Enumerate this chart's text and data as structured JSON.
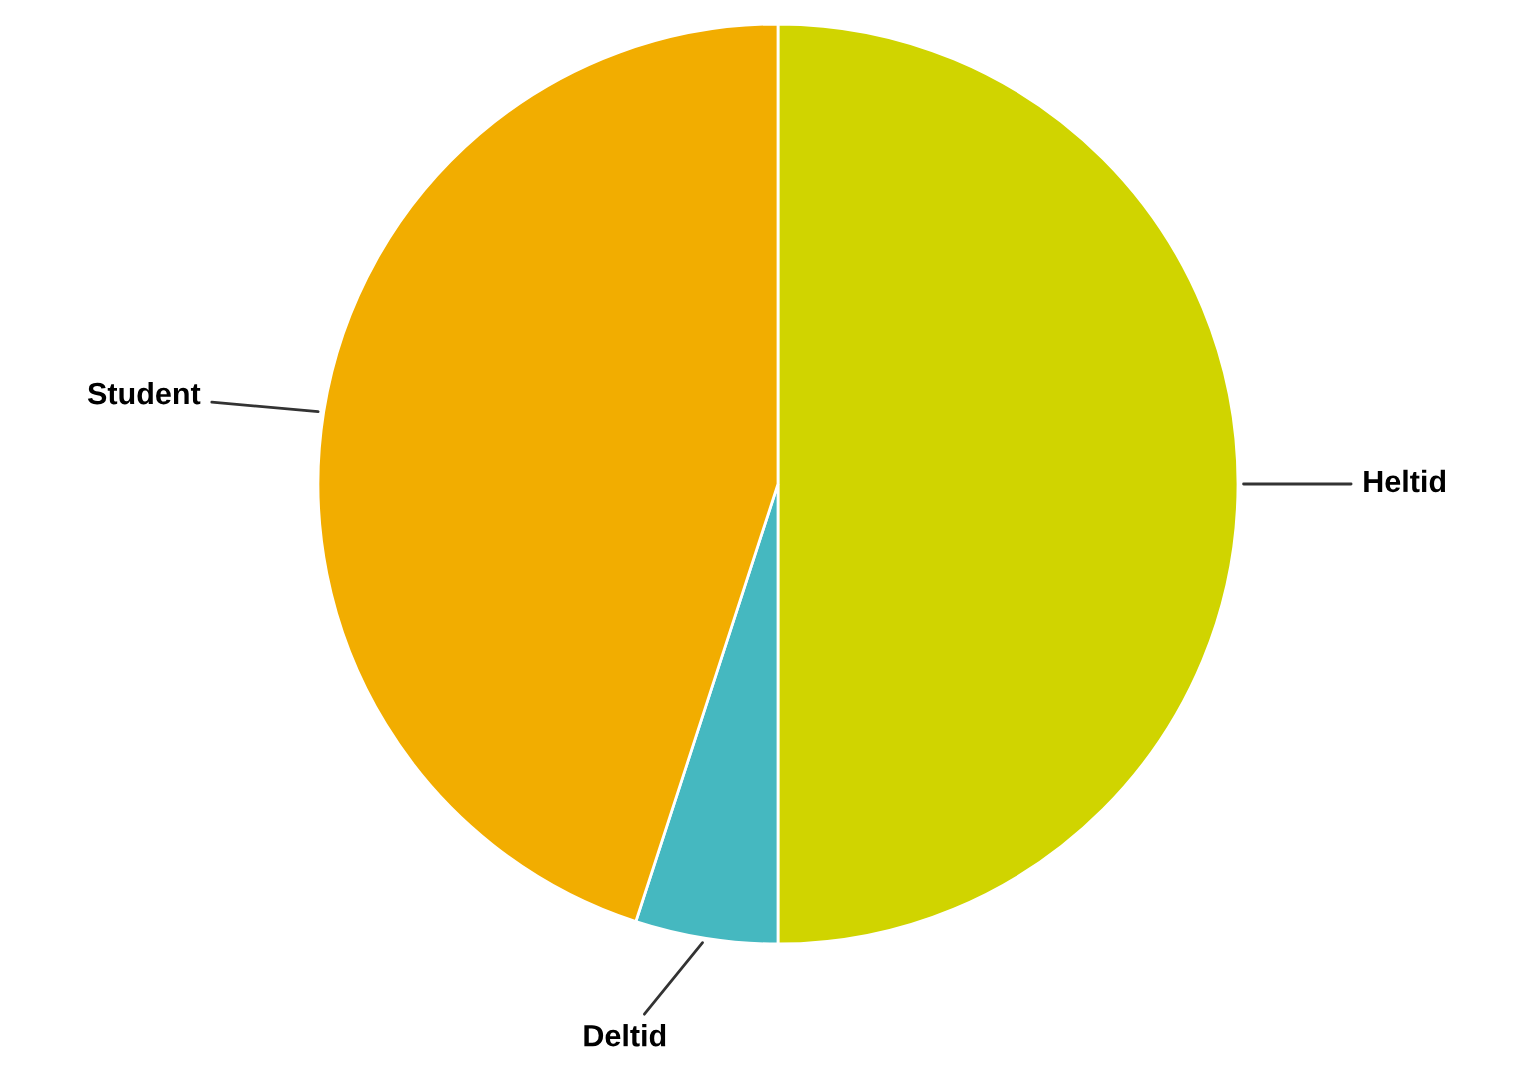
{
  "chart_data": {
    "type": "pie",
    "categories": [
      "Heltid",
      "Deltid",
      "Student"
    ],
    "values": [
      50,
      5,
      45
    ],
    "colors": [
      "#d0d400",
      "#45b8c0",
      "#f2ad00"
    ]
  }
}
